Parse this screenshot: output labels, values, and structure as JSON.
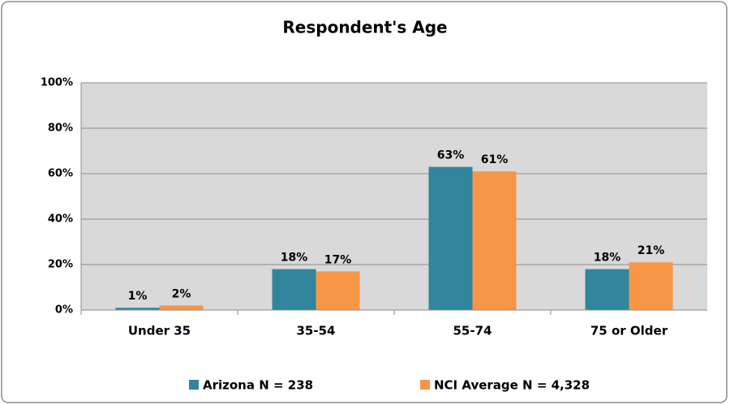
{
  "chart_data": {
    "type": "bar",
    "title": "Respondent's Age",
    "categories": [
      "Under 35",
      "35-54",
      "55-74",
      "75 or Older"
    ],
    "series": [
      {
        "name": "Arizona N = 238",
        "color": "#31859c",
        "values": [
          1,
          18,
          63,
          18
        ],
        "value_labels": [
          "1%",
          "18%",
          "63%",
          "18%"
        ]
      },
      {
        "name": "NCI Average N = 4,328",
        "color": "#f79646",
        "values": [
          2,
          17,
          61,
          21
        ],
        "value_labels": [
          "2%",
          "17%",
          "61%",
          "21%"
        ]
      }
    ],
    "ylim": [
      0,
      100
    ],
    "yticks": [
      {
        "value": 0,
        "label": "0%"
      },
      {
        "value": 20,
        "label": "20%"
      },
      {
        "value": 40,
        "label": "40%"
      },
      {
        "value": 60,
        "label": "60%"
      },
      {
        "value": 80,
        "label": "80%"
      },
      {
        "value": 100,
        "label": "100%"
      }
    ],
    "grid": true,
    "legend": "bottom"
  }
}
